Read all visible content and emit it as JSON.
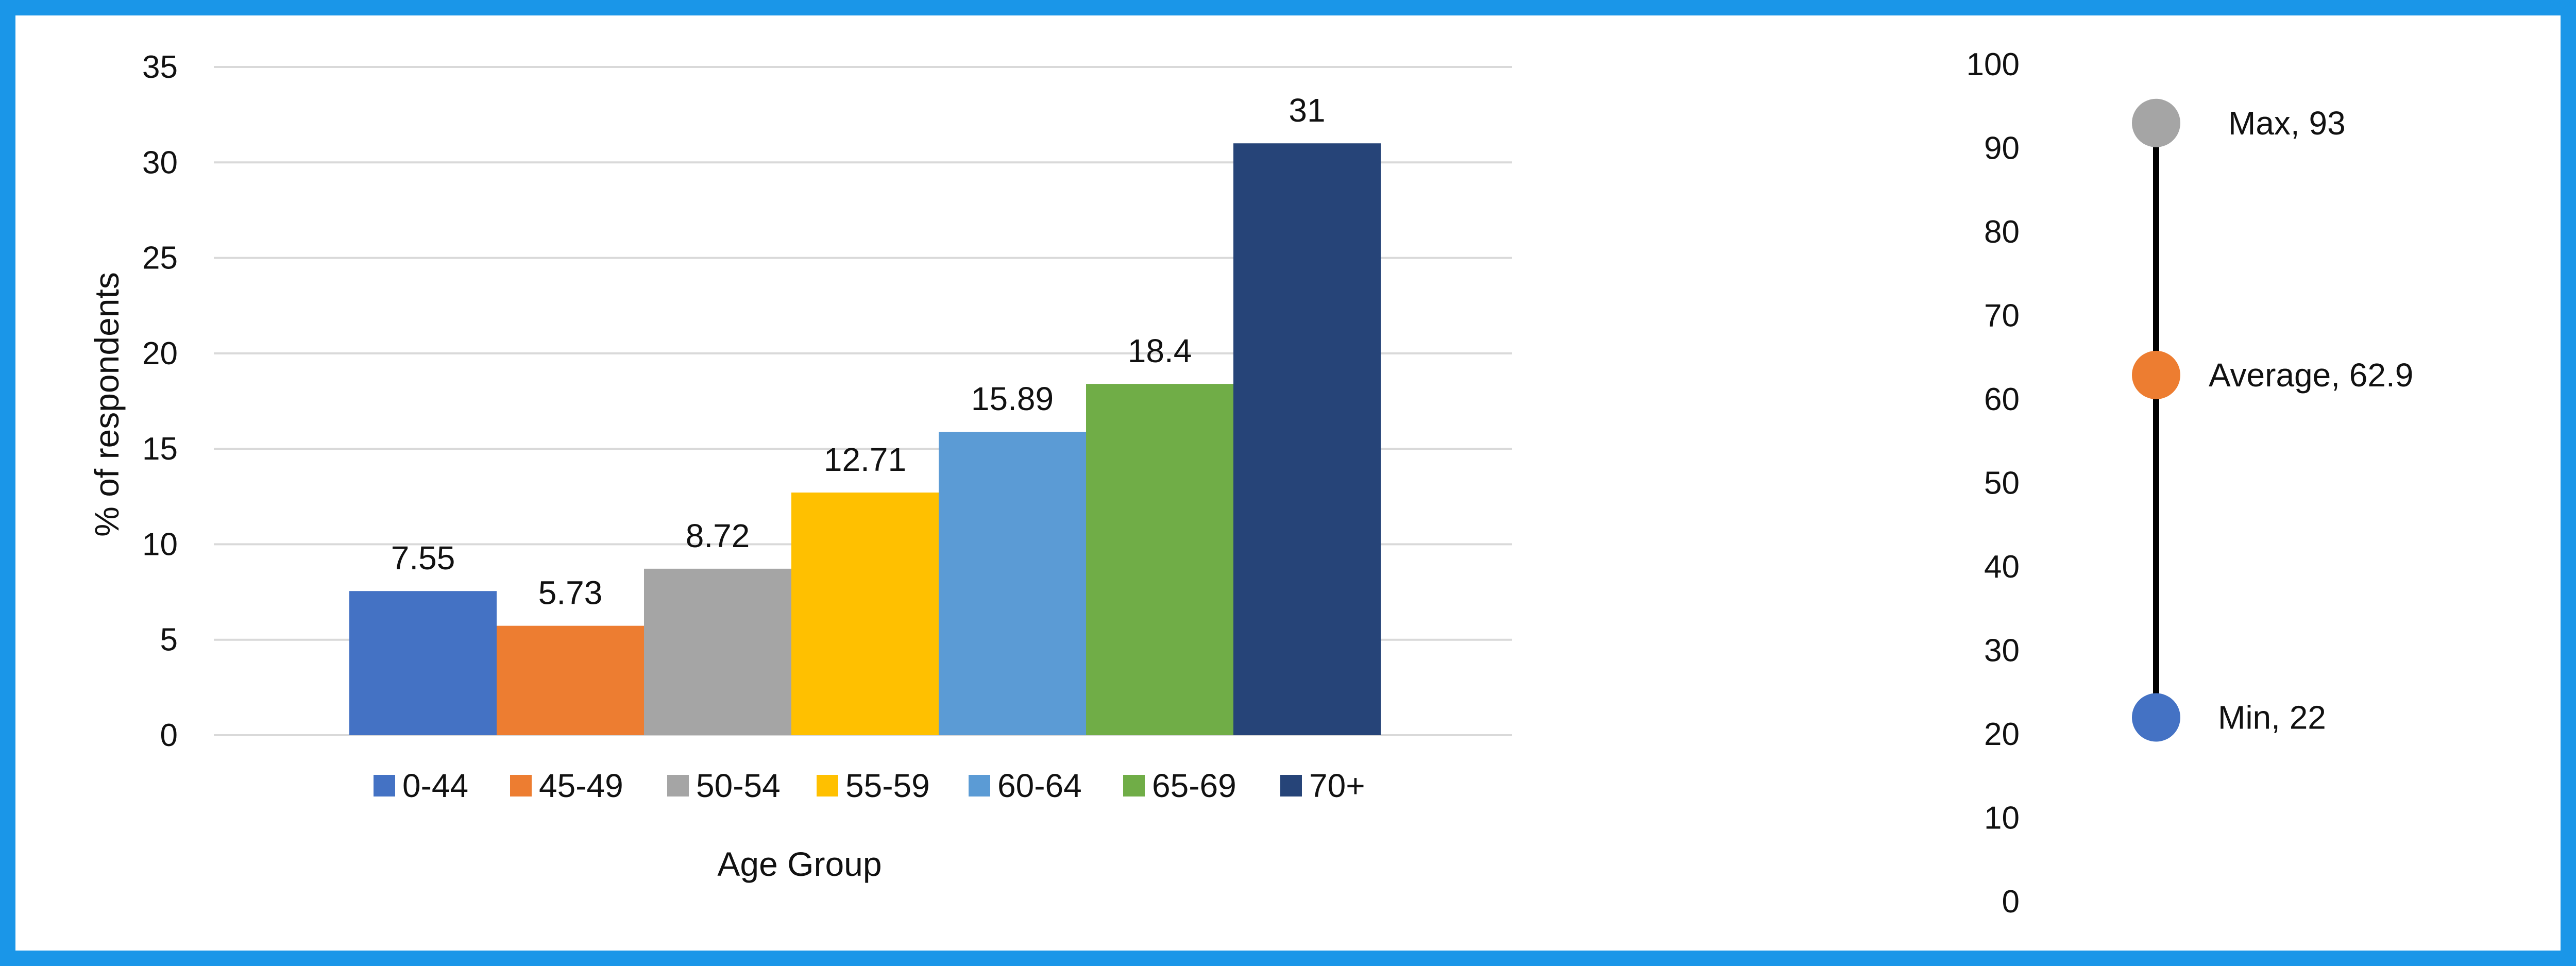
{
  "colors": {
    "frame": "#1a96e8",
    "grid": "#d9d9d9",
    "stem": "#000000"
  },
  "chart_data": [
    {
      "type": "bar",
      "title": "",
      "xlabel": "Age Group",
      "ylabel": "% of respondents",
      "ylim": [
        0,
        35
      ],
      "yticks": [
        "0",
        "5",
        "10",
        "15",
        "20",
        "25",
        "30",
        "35"
      ],
      "grid": true,
      "legend_position": "bottom",
      "categories": [
        "0-44",
        "45-49",
        "50-54",
        "55-59",
        "60-64",
        "65-69",
        "70+"
      ],
      "values": [
        7.55,
        5.73,
        8.72,
        12.71,
        15.89,
        18.4,
        31
      ],
      "data_labels": [
        "7.55",
        "5.73",
        "8.72",
        "12.71",
        "15.89",
        "18.4",
        "31"
      ],
      "colors": [
        "#4472c4",
        "#ed7d31",
        "#a5a5a5",
        "#ffc000",
        "#5b9bd5",
        "#70ad47",
        "#264478"
      ]
    },
    {
      "type": "scatter",
      "title": "",
      "ylim": [
        0,
        100
      ],
      "yticks": [
        "0",
        "10",
        "20",
        "30",
        "40",
        "50",
        "60",
        "70",
        "80",
        "90",
        "100"
      ],
      "grid": false,
      "points": [
        {
          "label": "Max, 93",
          "value": 93,
          "color": "#a5a5a5"
        },
        {
          "label": "Average, 62.9",
          "value": 62.9,
          "color": "#ed7d31"
        },
        {
          "label": "Min, 22",
          "value": 22,
          "color": "#4472c4"
        }
      ]
    }
  ]
}
